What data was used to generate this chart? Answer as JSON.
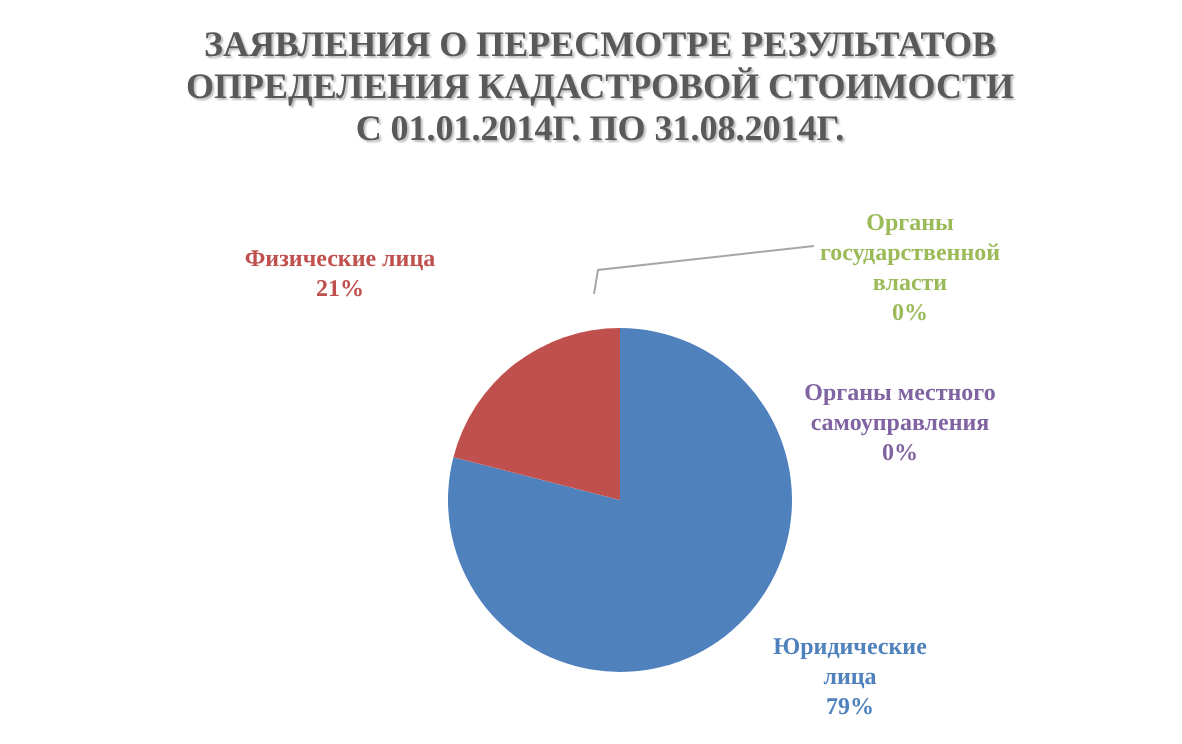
{
  "chart_data": {
    "type": "pie",
    "title": "ЗАЯВЛЕНИЯ О ПЕРЕСМОТРЕ РЕЗУЛЬТАТОВ ОПРЕДЕЛЕНИЯ КАДАСТРОВОЙ СТОИМОСТИ С 01.01.2014Г. ПО 31.08.2014Г.",
    "categories": [
      "Юридические лица",
      "Физические лица",
      "Органы государственной власти",
      "Органы местного самоуправления"
    ],
    "values": [
      79,
      21,
      0,
      0
    ],
    "colors": [
      "#4f81bd",
      "#c0504d",
      "#9bbb59",
      "#8064a2"
    ],
    "value_labels": [
      "79%",
      "21%",
      "0%",
      "0%"
    ],
    "legend": false
  }
}
